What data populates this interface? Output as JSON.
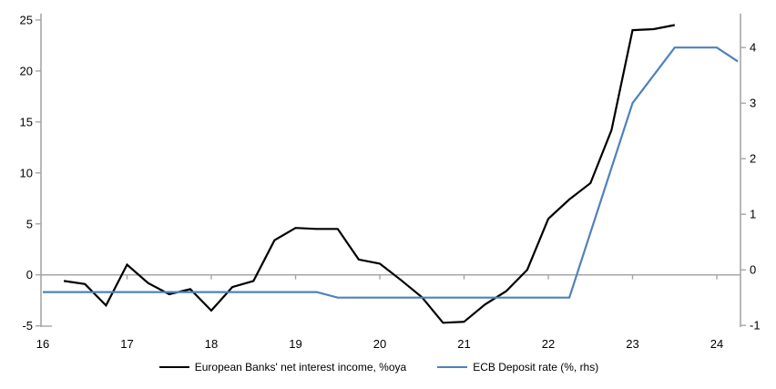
{
  "chart_data": {
    "type": "line",
    "title": "",
    "x_axis": {
      "tick_labels": [
        "16",
        "17",
        "18",
        "19",
        "20",
        "21",
        "22",
        "23",
        "24"
      ],
      "tick_values": [
        16,
        17,
        18,
        19,
        20,
        21,
        22,
        23,
        24
      ],
      "range": [
        16,
        24.3
      ],
      "unit": "year"
    },
    "left_axis": {
      "tick_labels": [
        "25",
        "20",
        "15",
        "10",
        "5",
        "0",
        "-5"
      ],
      "tick_values": [
        25,
        20,
        15,
        10,
        5,
        0,
        -5
      ],
      "range": [
        -5,
        25
      ]
    },
    "right_axis": {
      "tick_labels": [
        "4",
        "3",
        "2",
        "1",
        "0",
        "-1"
      ],
      "tick_values": [
        4,
        3,
        2,
        1,
        0,
        -1
      ],
      "range": [
        -1,
        4
      ]
    },
    "grid": "zero-line-only",
    "legend_position": "bottom-center",
    "series": [
      {
        "name": "European Banks' net interest income, %oya",
        "axis": "left",
        "color": "#000000",
        "x": [
          16.25,
          16.5,
          16.75,
          17.0,
          17.25,
          17.5,
          17.75,
          18.0,
          18.25,
          18.5,
          18.75,
          19.0,
          19.25,
          19.5,
          19.75,
          20.0,
          20.25,
          20.5,
          20.75,
          21.0,
          21.25,
          21.5,
          21.75,
          22.0,
          22.25,
          22.5,
          22.75,
          23.0,
          23.25,
          23.5
        ],
        "values": [
          -0.6,
          -0.9,
          -3.0,
          1.0,
          -0.8,
          -1.9,
          -1.4,
          -3.5,
          -1.2,
          -0.6,
          3.4,
          4.6,
          4.5,
          4.5,
          1.5,
          1.1,
          -0.5,
          -2.2,
          -4.7,
          -4.6,
          -2.9,
          -1.6,
          0.5,
          5.5,
          7.4,
          9.0,
          14.2,
          24.0,
          24.1,
          24.5
        ]
      },
      {
        "name": "ECB Deposit rate (%, rhs)",
        "axis": "right",
        "color": "#4f81bd",
        "x": [
          16.0,
          19.25,
          19.5,
          22.25,
          23.0,
          23.5,
          24.0,
          24.25
        ],
        "values": [
          -0.4,
          -0.4,
          -0.5,
          -0.5,
          3.0,
          4.0,
          4.0,
          3.75
        ]
      }
    ]
  },
  "colors": {
    "axis": "#a6a6a6",
    "zero_line": "#a6a6a6",
    "text": "#000000",
    "background": "#ffffff",
    "series_nii": "#000000",
    "series_ecb": "#4f81bd"
  },
  "legend": {
    "items": [
      {
        "label": "European Banks' net interest income, %oya"
      },
      {
        "label": "ECB Deposit rate (%, rhs)"
      }
    ]
  }
}
